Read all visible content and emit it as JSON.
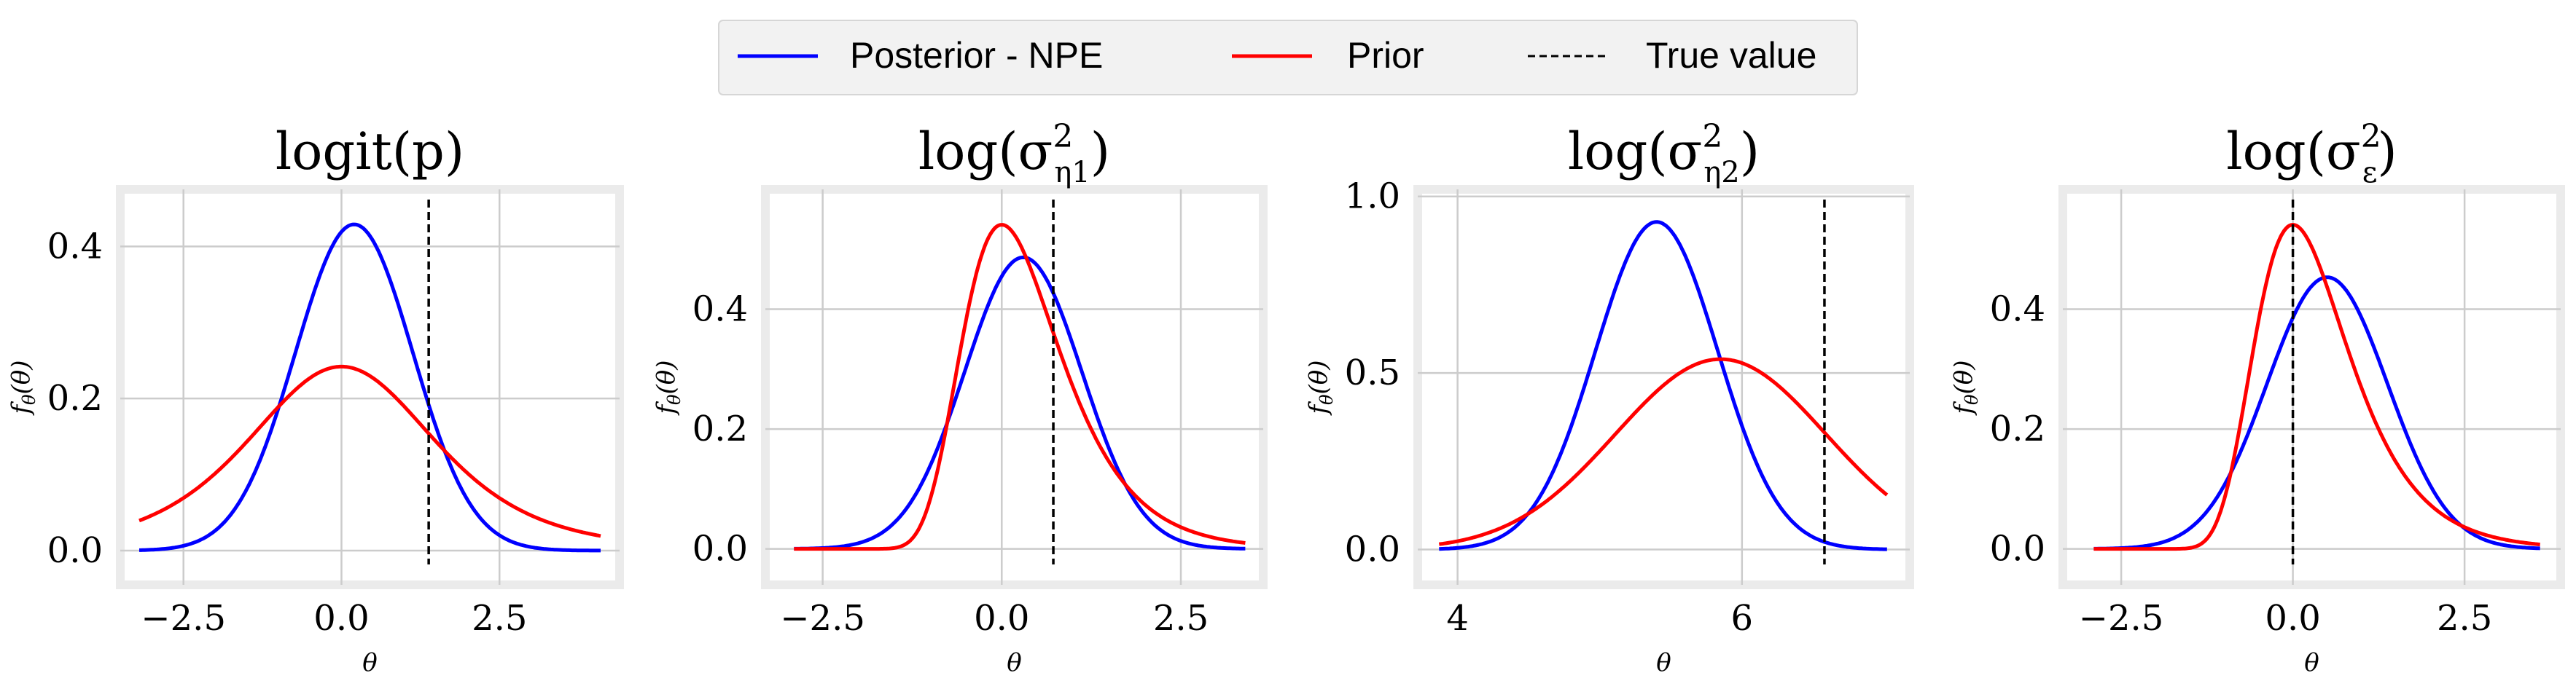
{
  "legend": {
    "entries": [
      {
        "label": "Posterior - NPE",
        "color": "#0000ff",
        "style": "solid"
      },
      {
        "label": "Prior",
        "color": "#ff0000",
        "style": "solid"
      },
      {
        "label": "True value",
        "color": "#000000",
        "style": "dashed"
      }
    ]
  },
  "colors": {
    "posterior": "#0000ff",
    "prior": "#ff0000",
    "true_value": "#000000",
    "grid": "#cccccc",
    "frame": "#ebebeb"
  },
  "chart_data": [
    {
      "type": "line",
      "title": "logit(p)",
      "title_parts": {
        "base": "logit(p)",
        "sub": "",
        "sup": ""
      },
      "xlabel": "θ",
      "ylabel": "fθ(θ)",
      "xlim": [
        -3.5,
        4.4
      ],
      "ylim": [
        -0.045,
        0.475
      ],
      "xticks": [
        -2.5,
        0.0,
        2.5
      ],
      "xtick_labels": [
        "−2.5",
        "0.0",
        "2.5"
      ],
      "yticks": [
        0.0,
        0.2,
        0.4
      ],
      "ytick_labels": [
        "0.0",
        "0.2",
        "0.4"
      ],
      "true_value": 1.38,
      "x_range": [
        -3.2,
        4.1
      ],
      "series": [
        {
          "name": "Posterior - NPE",
          "dist": "normal",
          "mu": 0.2,
          "sigma": 0.93,
          "color": "#0000ff"
        },
        {
          "name": "Prior",
          "dist": "t",
          "mu": 0.0,
          "scale": 1.55,
          "df": 4,
          "color": "#ff0000"
        }
      ]
    },
    {
      "type": "line",
      "title": "log(σ²η1)",
      "title_parts": {
        "base": "log(σ",
        "sub": "η1",
        "sup": "2"
      },
      "xlabel": "θ",
      "ylabel": "fθ(θ)",
      "xlim": [
        -3.3,
        3.65
      ],
      "ylim": [
        -0.06,
        0.6
      ],
      "xticks": [
        -2.5,
        0.0,
        2.5
      ],
      "xtick_labels": [
        "−2.5",
        "0.0",
        "2.5"
      ],
      "yticks": [
        0.0,
        0.2,
        0.4
      ],
      "ytick_labels": [
        "0.0",
        "0.2",
        "0.4"
      ],
      "true_value": 0.72,
      "x_range": [
        -2.9,
        3.4
      ],
      "series": [
        {
          "name": "Posterior - NPE",
          "dist": "normal",
          "mu": 0.3,
          "sigma": 0.82,
          "color": "#0000ff"
        },
        {
          "name": "Prior",
          "dist": "gumbel",
          "mu": 0.0,
          "beta": 0.68,
          "color": "#ff0000"
        }
      ]
    },
    {
      "type": "line",
      "title": "log(σ²η2)",
      "title_parts": {
        "base": "log(σ",
        "sub": "η2",
        "sup": "2"
      },
      "xlabel": "θ",
      "ylabel": "fθ(θ)",
      "xlim": [
        3.72,
        7.18
      ],
      "ylim": [
        -0.1,
        1.02
      ],
      "xticks": [
        4,
        6
      ],
      "xtick_labels": [
        "4",
        "6"
      ],
      "yticks": [
        0.0,
        0.5,
        1.0
      ],
      "ytick_labels": [
        "0.0",
        "0.5",
        "1.0"
      ],
      "true_value": 6.58,
      "x_range": [
        3.87,
        7.02
      ],
      "series": [
        {
          "name": "Posterior - NPE",
          "dist": "normal",
          "mu": 5.4,
          "sigma": 0.43,
          "color": "#0000ff"
        },
        {
          "name": "Prior",
          "dist": "normal",
          "mu": 5.85,
          "sigma": 0.74,
          "color": "#ff0000"
        }
      ]
    },
    {
      "type": "line",
      "title": "log(σ²ε)",
      "title_parts": {
        "base": "log(σ",
        "sub": "ε",
        "sup": "2"
      },
      "xlabel": "θ",
      "ylabel": "fθ(θ)",
      "xlim": [
        -3.35,
        3.9
      ],
      "ylim": [
        -0.06,
        0.6
      ],
      "xticks": [
        -2.5,
        0.0,
        2.5
      ],
      "xtick_labels": [
        "−2.5",
        "0.0",
        "2.5"
      ],
      "yticks": [
        0.0,
        0.2,
        0.4
      ],
      "ytick_labels": [
        "0.0",
        "0.2",
        "0.4"
      ],
      "true_value": 0.0,
      "x_range": [
        -2.9,
        3.6
      ],
      "series": [
        {
          "name": "Posterior - NPE",
          "dist": "normal",
          "mu": 0.5,
          "sigma": 0.88,
          "color": "#0000ff"
        },
        {
          "name": "Prior",
          "dist": "gumbel",
          "mu": 0.0,
          "beta": 0.68,
          "color": "#ff0000"
        }
      ]
    }
  ]
}
